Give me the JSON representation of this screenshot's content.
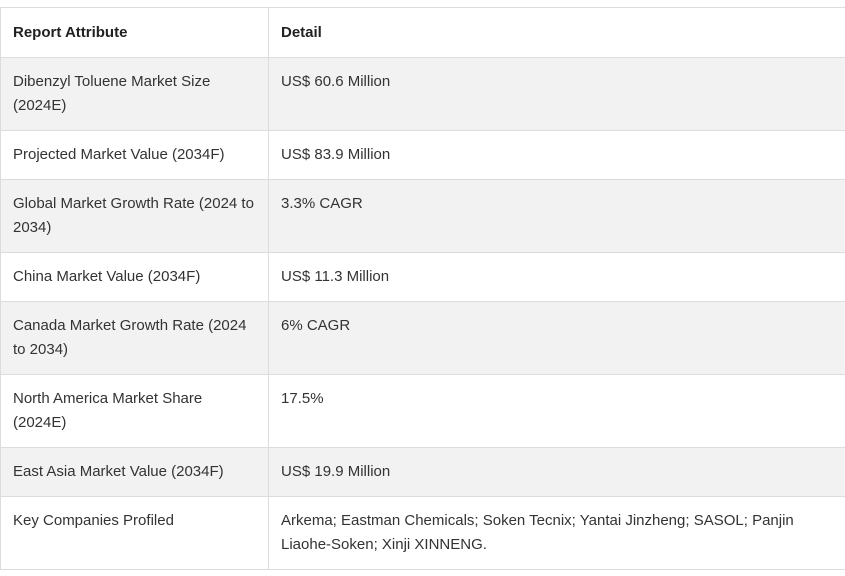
{
  "table": {
    "headers": [
      "Report Attribute",
      "Detail"
    ],
    "rows": [
      [
        "Dibenzyl Toluene Market Size (2024E)",
        "US$ 60.6 Million"
      ],
      [
        "Projected Market Value (2034F)",
        "US$ 83.9 Million"
      ],
      [
        "Global Market Growth Rate (2024 to 2034)",
        "3.3% CAGR"
      ],
      [
        "China Market Value (2034F)",
        "US$ 11.3 Million"
      ],
      [
        "Canada Market Growth Rate (2024 to 2034)",
        "6% CAGR"
      ],
      [
        "North America Market Share (2024E)",
        "17.5%"
      ],
      [
        "East Asia Market Value (2034F)",
        "US$ 19.9 Million"
      ],
      [
        "Key Companies Profiled",
        "Arkema; Eastman Chemicals; Soken Tecnix; Yantai Jinzheng; SASOL; Panjin Liaohe-Soken; Xinji XINNENG."
      ]
    ]
  },
  "colors": {
    "border": "#dcdcdc",
    "stripe": "#f2f2f2",
    "text": "#222222"
  }
}
